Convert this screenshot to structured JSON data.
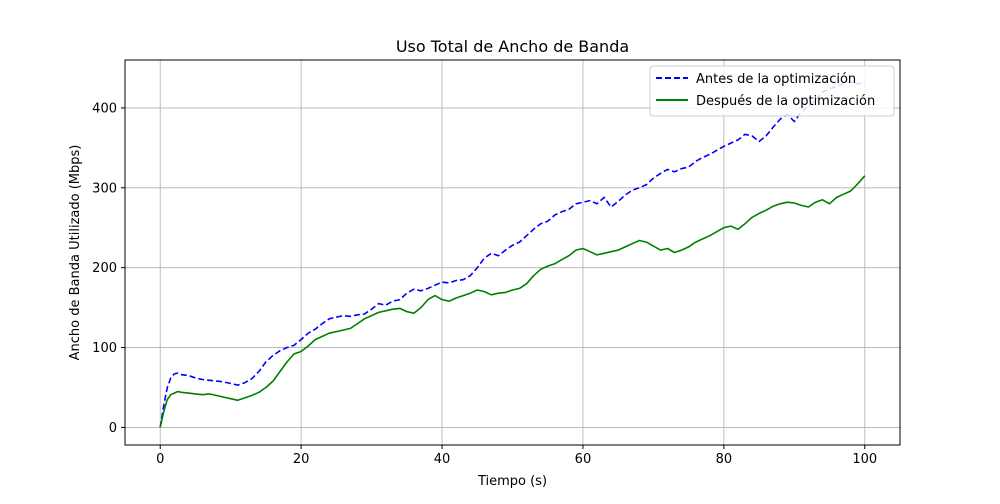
{
  "chart_data": {
    "type": "line",
    "title": "Uso Total de Ancho de Banda",
    "xlabel": "Tiempo (s)",
    "ylabel": "Ancho de Banda Utilizado (Mbps)",
    "xlim": [
      -5,
      105
    ],
    "ylim": [
      -22,
      460
    ],
    "xticks": [
      0,
      20,
      40,
      60,
      80,
      100
    ],
    "yticks": [
      0,
      100,
      200,
      300,
      400
    ],
    "grid": true,
    "legend_position": "top-right",
    "series": [
      {
        "name": "Antes de la optimización",
        "color": "#0000ff",
        "line_style": "dashed",
        "x": [
          0,
          0.5,
          1,
          1.5,
          2,
          2.5,
          3,
          4,
          5,
          6,
          7,
          8,
          9,
          10,
          11,
          12,
          13,
          14,
          15,
          16,
          17,
          18,
          19,
          20,
          21,
          22,
          23,
          24,
          25,
          26,
          27,
          28,
          29,
          30,
          31,
          32,
          33,
          34,
          35,
          36,
          37,
          38,
          39,
          40,
          41,
          42,
          43,
          44,
          45,
          46,
          47,
          48,
          49,
          50,
          51,
          52,
          53,
          54,
          55,
          56,
          57,
          58,
          59,
          60,
          61,
          62,
          63,
          64,
          65,
          66,
          67,
          68,
          69,
          70,
          71,
          72,
          73,
          74,
          75,
          76,
          77,
          78,
          79,
          80,
          81,
          82,
          83,
          84,
          85,
          86,
          87,
          88,
          89,
          90,
          91,
          92,
          93,
          94,
          95,
          96,
          97,
          98,
          99,
          100
        ],
        "y": [
          0,
          28,
          50,
          62,
          67,
          68,
          66,
          65,
          62,
          60,
          59,
          58,
          57,
          55,
          53,
          56,
          61,
          70,
          82,
          90,
          96,
          100,
          103,
          110,
          118,
          123,
          130,
          136,
          138,
          140,
          139,
          141,
          142,
          148,
          155,
          153,
          158,
          160,
          168,
          173,
          171,
          174,
          178,
          182,
          181,
          184,
          185,
          190,
          200,
          212,
          218,
          215,
          222,
          228,
          232,
          240,
          248,
          255,
          258,
          266,
          270,
          273,
          280,
          282,
          284,
          280,
          288,
          276,
          283,
          291,
          297,
          300,
          304,
          312,
          318,
          323,
          320,
          324,
          326,
          333,
          338,
          342,
          347,
          352,
          356,
          360,
          367,
          365,
          358,
          365,
          376,
          386,
          392,
          383,
          395,
          402,
          410,
          420,
          424,
          427,
          431,
          433,
          430,
          432
        ]
      },
      {
        "name": "Después de la optimización",
        "color": "#008000",
        "line_style": "solid",
        "x": [
          0,
          0.5,
          1,
          1.5,
          2,
          2.5,
          3,
          4,
          5,
          6,
          7,
          8,
          9,
          10,
          11,
          12,
          13,
          14,
          15,
          16,
          17,
          18,
          19,
          20,
          21,
          22,
          23,
          24,
          25,
          26,
          27,
          28,
          29,
          30,
          31,
          32,
          33,
          34,
          35,
          36,
          37,
          38,
          39,
          40,
          41,
          42,
          43,
          44,
          45,
          46,
          47,
          48,
          49,
          50,
          51,
          52,
          53,
          54,
          55,
          56,
          57,
          58,
          59,
          60,
          61,
          62,
          63,
          64,
          65,
          66,
          67,
          68,
          69,
          70,
          71,
          72,
          73,
          74,
          75,
          76,
          77,
          78,
          79,
          80,
          81,
          82,
          83,
          84,
          85,
          86,
          87,
          88,
          89,
          90,
          91,
          92,
          93,
          94,
          95,
          96,
          97,
          98,
          99,
          100
        ],
        "y": [
          0,
          20,
          35,
          41,
          43,
          45,
          44,
          43,
          42,
          41,
          42,
          40,
          38,
          36,
          34,
          37,
          40,
          44,
          50,
          58,
          70,
          82,
          92,
          95,
          102,
          110,
          114,
          118,
          120,
          122,
          124,
          130,
          136,
          140,
          144,
          146,
          148,
          149,
          145,
          143,
          150,
          160,
          165,
          160,
          158,
          162,
          165,
          168,
          172,
          170,
          166,
          168,
          169,
          172,
          174,
          180,
          190,
          198,
          202,
          205,
          210,
          215,
          222,
          224,
          220,
          216,
          218,
          220,
          222,
          226,
          230,
          234,
          232,
          227,
          222,
          224,
          219,
          222,
          226,
          232,
          236,
          240,
          245,
          250,
          252,
          248,
          255,
          263,
          268,
          272,
          277,
          280,
          282,
          281,
          278,
          276,
          282,
          285,
          280,
          288,
          292,
          296,
          305,
          315
        ]
      }
    ]
  }
}
